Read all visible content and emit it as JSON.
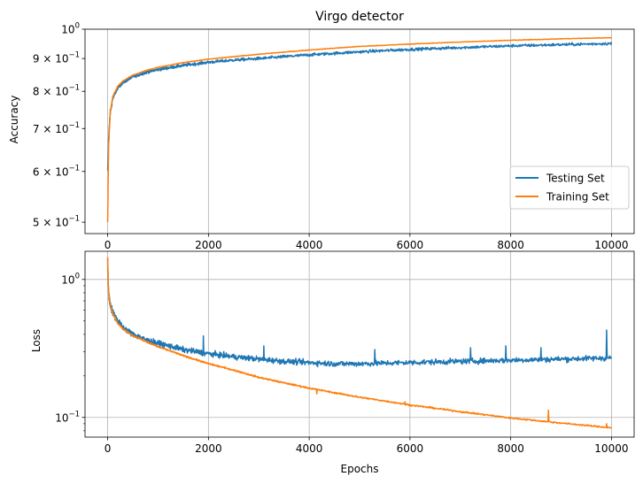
{
  "chart_data": [
    {
      "type": "line",
      "title": "Virgo detector",
      "xlabel": "",
      "ylabel": "Accuracy",
      "yscale": "log",
      "xlim": [
        -450,
        10450
      ],
      "ylim": [
        0.48,
        1.0
      ],
      "xticks": [
        0,
        2000,
        4000,
        6000,
        8000,
        10000
      ],
      "xtick_labels": [
        "0",
        "2000",
        "4000",
        "6000",
        "8000",
        "10000"
      ],
      "yticks": [
        0.5,
        0.6,
        0.7,
        0.8,
        0.9,
        1.0
      ],
      "ytick_labels": [
        {
          "mant": "5",
          "base": "10",
          "exp": "−1"
        },
        {
          "mant": "6",
          "base": "10",
          "exp": "−1"
        },
        {
          "mant": "7",
          "base": "10",
          "exp": "−1"
        },
        {
          "mant": "8",
          "base": "10",
          "exp": "−1"
        },
        {
          "mant": "9",
          "base": "10",
          "exp": "−1"
        },
        {
          "mant": "",
          "base": "10",
          "exp": "0"
        }
      ],
      "grid": "x",
      "legend_position": "lower right",
      "series": [
        {
          "name": "Testing Set",
          "color": "#1f77b4",
          "x": [
            0,
            20,
            50,
            100,
            200,
            300,
            500,
            800,
            1000,
            1500,
            2000,
            2500,
            3000,
            4000,
            5000,
            6000,
            7000,
            8000,
            9000,
            10000
          ],
          "y": [
            0.6,
            0.68,
            0.74,
            0.78,
            0.81,
            0.825,
            0.843,
            0.858,
            0.865,
            0.878,
            0.888,
            0.895,
            0.9,
            0.912,
            0.922,
            0.93,
            0.936,
            0.942,
            0.946,
            0.95
          ],
          "noise": 0.01
        },
        {
          "name": "Training Set",
          "color": "#ff7f0e",
          "x": [
            0,
            20,
            50,
            100,
            200,
            300,
            500,
            800,
            1000,
            1500,
            2000,
            2500,
            3000,
            4000,
            5000,
            6000,
            7000,
            8000,
            9000,
            10000
          ],
          "y": [
            0.5,
            0.66,
            0.74,
            0.785,
            0.815,
            0.83,
            0.848,
            0.864,
            0.872,
            0.887,
            0.898,
            0.906,
            0.914,
            0.928,
            0.94,
            0.948,
            0.955,
            0.961,
            0.966,
            0.97
          ],
          "noise": 0.002
        }
      ]
    },
    {
      "type": "line",
      "title": "",
      "xlabel": "Epochs",
      "ylabel": "Loss",
      "yscale": "log",
      "xlim": [
        -450,
        10450
      ],
      "ylim": [
        0.072,
        1.6
      ],
      "xticks": [
        0,
        2000,
        4000,
        6000,
        8000,
        10000
      ],
      "xtick_labels": [
        "0",
        "2000",
        "4000",
        "6000",
        "8000",
        "10000"
      ],
      "yticks": [
        0.1,
        1.0
      ],
      "ytick_labels": [
        {
          "mant": "",
          "base": "10",
          "exp": "−1"
        },
        {
          "mant": "",
          "base": "10",
          "exp": "0"
        }
      ],
      "grid": "both",
      "series": [
        {
          "name": "Testing Set",
          "color": "#1f77b4",
          "x": [
            0,
            10,
            30,
            60,
            100,
            200,
            300,
            500,
            800,
            1000,
            1500,
            2000,
            2500,
            3000,
            3500,
            4000,
            4500,
            5000,
            6000,
            7000,
            8000,
            9000,
            10000
          ],
          "y": [
            1.35,
            0.9,
            0.74,
            0.64,
            0.58,
            0.5,
            0.45,
            0.4,
            0.36,
            0.345,
            0.31,
            0.29,
            0.275,
            0.265,
            0.255,
            0.25,
            0.245,
            0.245,
            0.25,
            0.255,
            0.26,
            0.265,
            0.27
          ],
          "noise": 0.09,
          "spikes": [
            [
              1900,
              0.39
            ],
            [
              3100,
              0.33
            ],
            [
              5300,
              0.31
            ],
            [
              6500,
              0.39
            ],
            [
              7200,
              0.32
            ],
            [
              7900,
              0.33
            ],
            [
              8600,
              0.32
            ],
            [
              9450,
              0.33
            ],
            [
              9900,
              0.43
            ]
          ]
        },
        {
          "name": "Training Set",
          "color": "#ff7f0e",
          "x": [
            0,
            10,
            30,
            60,
            100,
            200,
            300,
            500,
            800,
            1000,
            1500,
            2000,
            2500,
            3000,
            3500,
            4000,
            4500,
            5000,
            6000,
            7000,
            8000,
            9000,
            10000
          ],
          "y": [
            1.45,
            0.92,
            0.74,
            0.64,
            0.57,
            0.48,
            0.44,
            0.39,
            0.35,
            0.325,
            0.28,
            0.245,
            0.22,
            0.195,
            0.178,
            0.163,
            0.151,
            0.14,
            0.123,
            0.11,
            0.099,
            0.091,
            0.084
          ],
          "noise": 0.025,
          "spikes": [
            [
              4150,
              0.148
            ],
            [
              5900,
              0.13
            ],
            [
              8750,
              0.113
            ],
            [
              9900,
              0.09
            ]
          ]
        }
      ]
    }
  ]
}
